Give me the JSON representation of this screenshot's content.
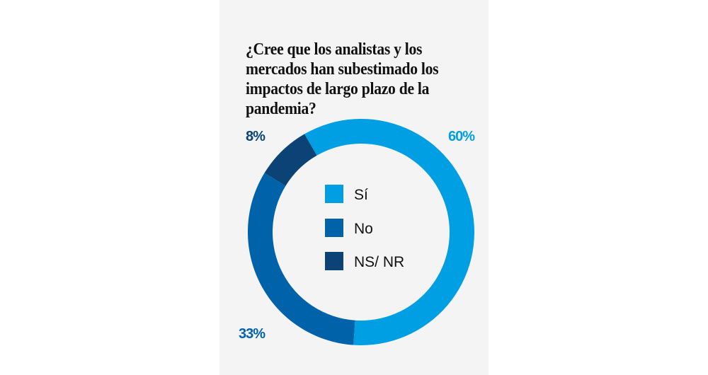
{
  "chart_data": {
    "type": "pie",
    "variant": "donut",
    "title_lines": [
      "¿Cree que los analistas y los",
      "mercados han subestimado los",
      "impactos de largo plazo de la",
      "pandemia?"
    ],
    "categories": [
      "Sí",
      "No",
      "NS/ NR"
    ],
    "values": [
      60,
      33,
      8
    ],
    "labels": [
      "60%",
      "33%",
      "8%"
    ],
    "colors": [
      "#009fe3",
      "#0062a8",
      "#0b4377"
    ],
    "legend": "center"
  }
}
